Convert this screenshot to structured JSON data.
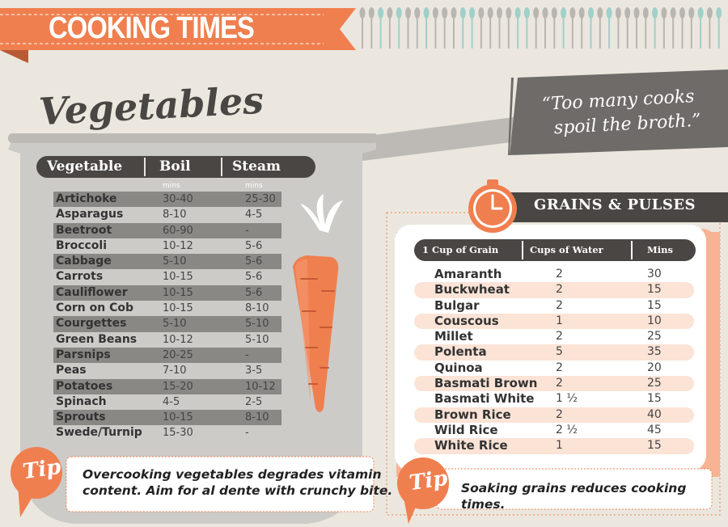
{
  "title": "COOKING TIMES",
  "quote": {
    "line1": "“Too many cooks",
    "line2": "spoil the broth.”"
  },
  "vegetables": {
    "heading": "Vegetables",
    "headers": {
      "vegetable": "Vegetable",
      "boil": "Boil",
      "steam": "Steam"
    },
    "units": {
      "boil": "mins",
      "steam": "mins"
    },
    "rows": [
      {
        "name": "Artichoke",
        "boil": "30-40",
        "steam": "25-30"
      },
      {
        "name": "Asparagus",
        "boil": "8-10",
        "steam": "4-5"
      },
      {
        "name": "Beetroot",
        "boil": "60-90",
        "steam": "-"
      },
      {
        "name": "Broccoli",
        "boil": "10-12",
        "steam": "5-6"
      },
      {
        "name": "Cabbage",
        "boil": "5-10",
        "steam": "5-6"
      },
      {
        "name": "Carrots",
        "boil": "10-15",
        "steam": "5-6"
      },
      {
        "name": "Cauliflower",
        "boil": "10-15",
        "steam": "5-6"
      },
      {
        "name": "Corn on Cob",
        "boil": "10-15",
        "steam": "8-10"
      },
      {
        "name": "Courgettes",
        "boil": "5-10",
        "steam": "5-10"
      },
      {
        "name": "Green Beans",
        "boil": "10-12",
        "steam": "5-10"
      },
      {
        "name": "Parsnips",
        "boil": "20-25",
        "steam": "-"
      },
      {
        "name": "Peas",
        "boil": "7-10",
        "steam": "3-5"
      },
      {
        "name": "Potatoes",
        "boil": "15-20",
        "steam": "10-12"
      },
      {
        "name": "Spinach",
        "boil": "4-5",
        "steam": "2-5"
      },
      {
        "name": "Sprouts",
        "boil": "10-15",
        "steam": "8-10"
      },
      {
        "name": "Swede/Turnip",
        "boil": "15-30",
        "steam": "-"
      }
    ],
    "tip": {
      "label": "Tip",
      "line1": "Overcooking vegetables degrades vitamin",
      "line2": "content. Aim for al dente with crunchy bite."
    }
  },
  "grains": {
    "heading": "GRAINS & PULSES",
    "headers": {
      "grain": "1 Cup of Grain",
      "water": "Cups of Water",
      "mins": "Mins"
    },
    "rows": [
      {
        "name": "Amaranth",
        "water": "2",
        "mins": "30"
      },
      {
        "name": "Buckwheat",
        "water": "2",
        "mins": "15"
      },
      {
        "name": "Bulgar",
        "water": "2",
        "mins": "15"
      },
      {
        "name": "Couscous",
        "water": "1",
        "mins": "10"
      },
      {
        "name": "Millet",
        "water": "2",
        "mins": "25"
      },
      {
        "name": "Polenta",
        "water": "5",
        "mins": "35"
      },
      {
        "name": "Quinoa",
        "water": "2",
        "mins": "20"
      },
      {
        "name": "Basmati Brown",
        "water": "2",
        "mins": "25"
      },
      {
        "name": "Basmati White",
        "water": "1 ½",
        "mins": "15"
      },
      {
        "name": "Brown Rice",
        "water": "2",
        "mins": "40"
      },
      {
        "name": "Wild Rice",
        "water": "2 ½",
        "mins": "45"
      },
      {
        "name": "White Rice",
        "water": "1",
        "mins": "15"
      }
    ],
    "tip": {
      "label": "Tip",
      "text": "Soaking grains reduces cooking times."
    }
  },
  "colors": {
    "background": "#ebe7df",
    "orange": "#f07f4f",
    "dark": "#4a4643",
    "pot": "#cdcbc8",
    "stripe": "#8a8885",
    "peach": "#fbe3d6"
  }
}
